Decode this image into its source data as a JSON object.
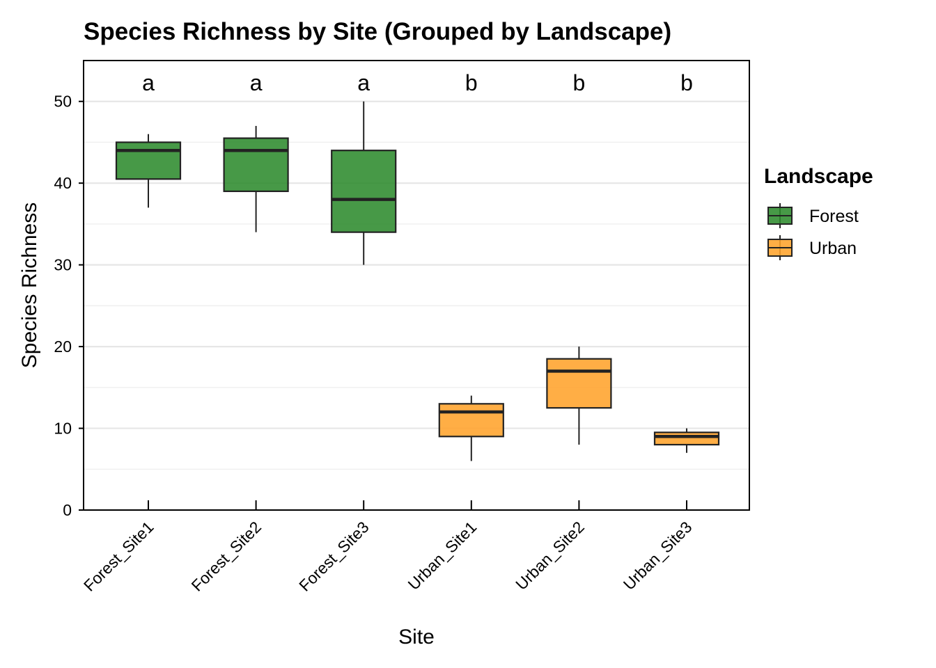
{
  "chart_data": {
    "type": "box",
    "title": "Species Richness by Site (Grouped by Landscape)",
    "xlabel": "Site",
    "ylabel": "Species Richness",
    "ylim": [
      0,
      55
    ],
    "yticks": [
      0,
      10,
      20,
      30,
      40,
      50
    ],
    "grid": "horizontal",
    "categories": [
      "Forest_Site1",
      "Forest_Site2",
      "Forest_Site3",
      "Urban_Site1",
      "Urban_Site2",
      "Urban_Site3"
    ],
    "boxes": [
      {
        "site": "Forest_Site1",
        "group": "Forest",
        "min": 37,
        "q1": 40.5,
        "median": 44,
        "q3": 45,
        "max": 46,
        "letter": "a"
      },
      {
        "site": "Forest_Site2",
        "group": "Forest",
        "min": 34,
        "q1": 39,
        "median": 44,
        "q3": 45.5,
        "max": 47,
        "letter": "a"
      },
      {
        "site": "Forest_Site3",
        "group": "Forest",
        "min": 30,
        "q1": 34,
        "median": 38,
        "q3": 44,
        "max": 50,
        "letter": "a"
      },
      {
        "site": "Urban_Site1",
        "group": "Urban",
        "min": 6,
        "q1": 9,
        "median": 12,
        "q3": 13,
        "max": 14,
        "letter": "b"
      },
      {
        "site": "Urban_Site2",
        "group": "Urban",
        "min": 8,
        "q1": 12.5,
        "median": 17,
        "q3": 18.5,
        "max": 20,
        "letter": "b"
      },
      {
        "site": "Urban_Site3",
        "group": "Urban",
        "min": 7,
        "q1": 8,
        "median": 9,
        "q3": 9.5,
        "max": 10,
        "letter": "b"
      }
    ],
    "legend": {
      "title": "Landscape",
      "placement": "right",
      "entries": [
        {
          "name": "Forest",
          "color": "#2e8b2e"
        },
        {
          "name": "Urban",
          "color": "#ffa32b"
        }
      ]
    }
  }
}
